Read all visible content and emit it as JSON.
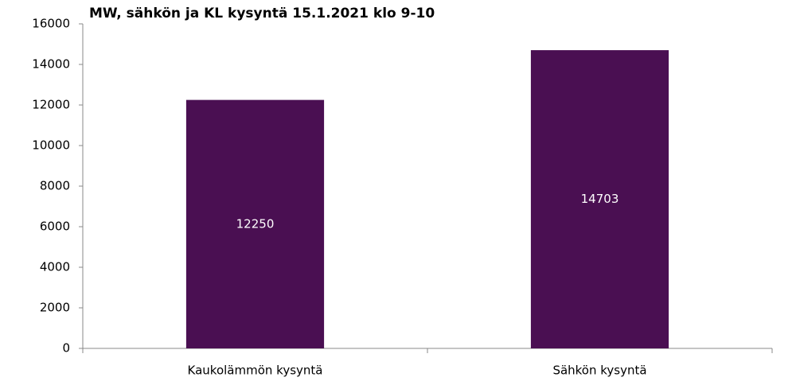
{
  "chart_data": {
    "type": "bar",
    "title": "MW, sähkön ja KL kysyntä 15.1.2021 klo 9-10",
    "categories": [
      "Kaukolämmön kysyntä",
      "Sähkön kysyntä"
    ],
    "values": [
      12250,
      14703
    ],
    "color": "#4a0f52",
    "ylim": [
      0,
      16000
    ],
    "yticks": [
      0,
      2000,
      4000,
      6000,
      8000,
      10000,
      12000,
      14000,
      16000
    ],
    "grid": false
  }
}
